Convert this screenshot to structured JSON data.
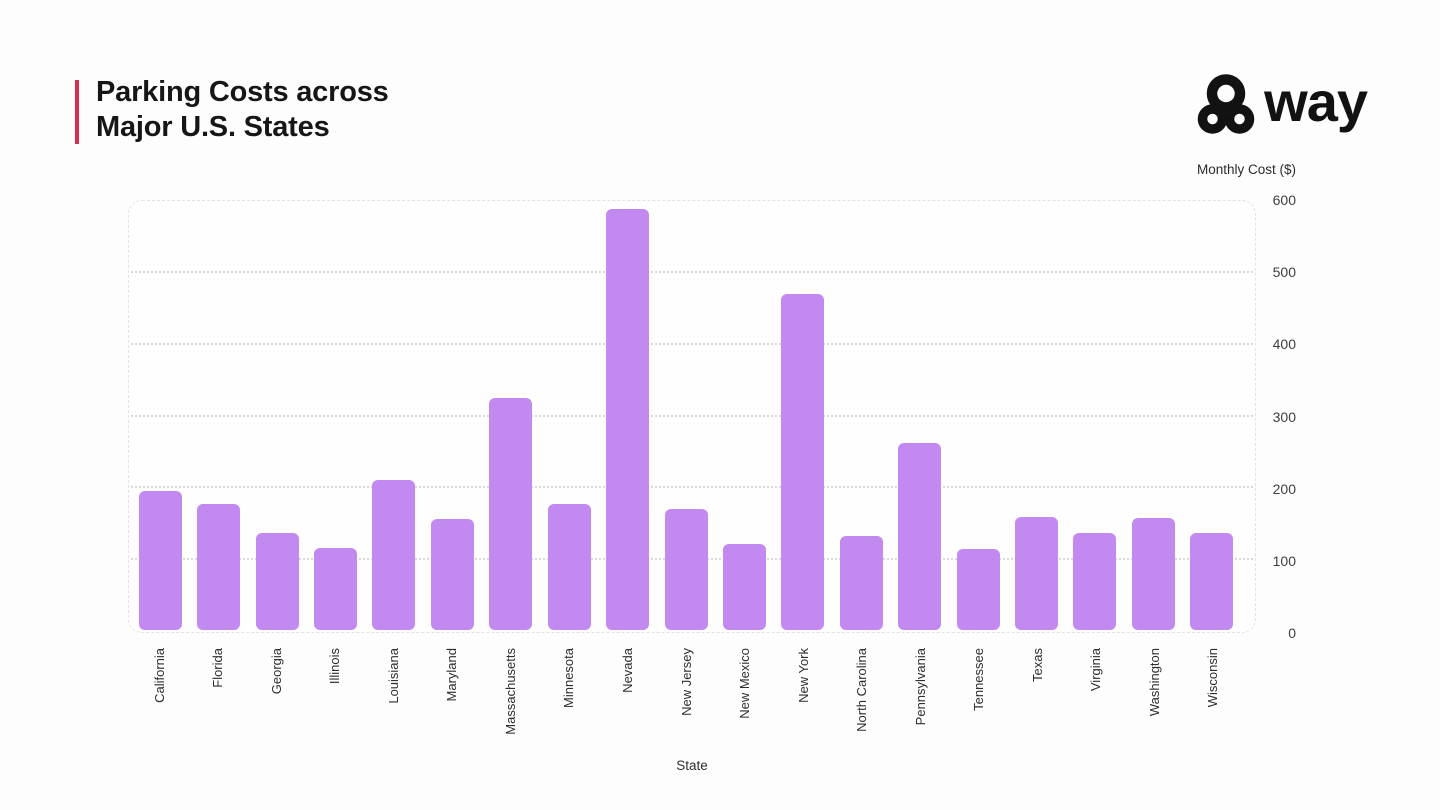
{
  "header": {
    "title_line1": "Parking Costs across",
    "title_line2": "Major U.S. States",
    "accent_color": "#d62f52"
  },
  "logo": {
    "text": "way",
    "icon": "trefoil-three-rings",
    "color": "#121212"
  },
  "chart_data": {
    "type": "bar",
    "title": "Parking Costs across Major U.S. States",
    "xlabel": "State",
    "ylabel": "Monthly Cost ($)",
    "ylim": [
      0,
      600
    ],
    "yticks": [
      600,
      500,
      400,
      300,
      200,
      100,
      0
    ],
    "gridlines": [
      500,
      400,
      300,
      200,
      100
    ],
    "grid": "horizontal-dotted",
    "legend": "none",
    "bar_color": "#c289f0",
    "categories": [
      "California",
      "Florida",
      "Georgia",
      "Illinois",
      "Louisiana",
      "Maryland",
      "Massachusetts",
      "Minnesota",
      "Nevada",
      "New Jersey",
      "New Mexico",
      "New York",
      "North Carolina",
      "Pennsylvania",
      "Tennessee",
      "Texas",
      "Virginia",
      "Washington",
      "Wisconsin"
    ],
    "values": [
      195,
      176,
      136,
      115,
      210,
      155,
      324,
      176,
      589,
      169,
      120,
      470,
      131,
      261,
      114,
      158,
      136,
      157,
      136
    ]
  }
}
